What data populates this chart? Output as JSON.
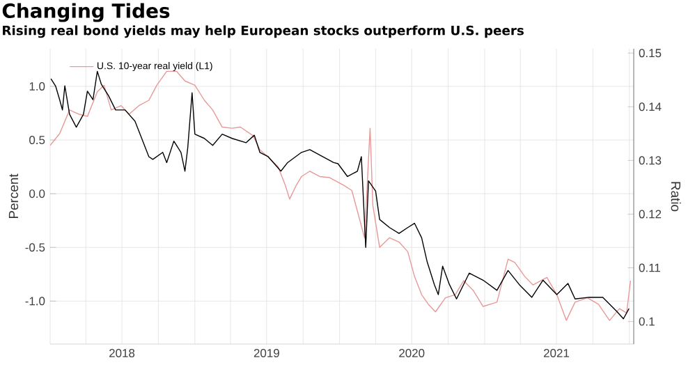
{
  "chart_data": {
    "type": "line",
    "title": "Changing Tides",
    "subtitle": "Rising real bond yields may help European stocks outperform U.S. peers",
    "ylabel": "Percent",
    "y2label": "Ratio",
    "xlim": [
      "2018-01-01",
      "2022-01-12"
    ],
    "ylim": [
      -1.4,
      1.35
    ],
    "y2lim": [
      0.0958,
      0.1508
    ],
    "xticks": [
      {
        "value": "2018-01-01",
        "label": null
      },
      {
        "value": "2018-04-01",
        "label": null
      },
      {
        "value": "2018-07-01",
        "label": "2018"
      },
      {
        "value": "2018-10-01",
        "label": null
      },
      {
        "value": "2019-01-01",
        "label": null
      },
      {
        "value": "2019-04-01",
        "label": null
      },
      {
        "value": "2019-07-01",
        "label": "2019"
      },
      {
        "value": "2019-10-01",
        "label": null
      },
      {
        "value": "2020-01-01",
        "label": null
      },
      {
        "value": "2020-04-01",
        "label": null
      },
      {
        "value": "2020-07-01",
        "label": "2020"
      },
      {
        "value": "2020-10-01",
        "label": null
      },
      {
        "value": "2021-01-01",
        "label": null
      },
      {
        "value": "2021-04-01",
        "label": null
      },
      {
        "value": "2021-07-01",
        "label": "2021"
      },
      {
        "value": "2021-10-01",
        "label": null
      },
      {
        "value": "2022-01-01",
        "label": null
      }
    ],
    "yticks": [
      {
        "value": -1,
        "label": "-1.0"
      },
      {
        "value": -0.5,
        "label": "-0.5"
      },
      {
        "value": 0,
        "label": "0.0"
      },
      {
        "value": 0.5,
        "label": "0.5"
      },
      {
        "value": 1,
        "label": "1.0"
      }
    ],
    "y2ticks": [
      0.1,
      0.11,
      0.12,
      0.13,
      0.14,
      0.15
    ],
    "grid": true,
    "legend": "top left",
    "series": [
      {
        "name": "U.S. 10-year real yield (L1)",
        "color": "#e89898",
        "x": [
          "2018-01-01",
          "2018-01-25",
          "2018-02-19",
          "2018-03-15",
          "2018-04-05",
          "2018-04-30",
          "2018-05-17",
          "2018-06-04",
          "2018-06-29",
          "2018-07-19",
          "2018-08-13",
          "2018-09-07",
          "2018-09-27",
          "2018-10-22",
          "2018-11-16",
          "2018-12-07",
          "2019-01-01",
          "2019-01-25",
          "2019-02-15",
          "2019-03-11",
          "2019-04-05",
          "2019-04-26",
          "2019-05-28",
          "2019-06-14",
          "2019-07-05",
          "2019-07-30",
          "2019-08-17",
          "2019-08-28",
          "2019-09-14",
          "2019-09-27",
          "2019-10-18",
          "2019-11-12",
          "2019-12-07",
          "2020-01-11",
          "2020-02-01",
          "2020-03-04",
          "2020-03-18",
          "2020-03-25",
          "2020-04-11",
          "2020-05-06",
          "2020-05-30",
          "2020-06-21",
          "2020-07-08",
          "2020-07-26",
          "2020-08-12",
          "2020-08-30",
          "2020-09-24",
          "2020-10-19",
          "2020-11-09",
          "2020-12-03",
          "2020-12-28",
          "2021-02-01",
          "2021-03-01",
          "2021-03-18",
          "2021-04-12",
          "2021-05-03",
          "2021-06-07",
          "2021-07-02",
          "2021-07-26",
          "2021-08-17",
          "2021-09-17",
          "2021-10-15",
          "2021-11-12",
          "2021-12-07",
          "2021-12-25",
          "2022-01-04"
        ],
        "values": [
          0.45,
          0.56,
          0.78,
          0.74,
          0.72,
          0.95,
          1.01,
          0.78,
          0.82,
          0.74,
          0.82,
          0.87,
          1.01,
          1.14,
          1.14,
          1.05,
          1.01,
          0.87,
          0.78,
          0.62,
          0.61,
          0.62,
          0.54,
          0.41,
          0.34,
          0.25,
          0.08,
          -0.05,
          0.08,
          0.16,
          0.21,
          0.16,
          0.15,
          0.08,
          0.03,
          -0.41,
          0.61,
          -0.11,
          -0.5,
          -0.41,
          -0.45,
          -0.54,
          -0.77,
          -0.94,
          -1.03,
          -1.1,
          -0.97,
          -0.94,
          -0.81,
          -0.9,
          -1.05,
          -1.01,
          -0.61,
          -0.64,
          -0.77,
          -0.85,
          -0.78,
          -0.94,
          -1.18,
          -1.01,
          -0.97,
          -1.03,
          -1.18,
          -1.07,
          -1.11,
          -0.81
        ]
      },
      {
        "color": "#000000",
        "axis": "y2",
        "x": [
          "2018-01-03",
          "2018-01-15",
          "2018-01-25",
          "2018-02-01",
          "2018-02-07",
          "2018-02-19",
          "2018-03-08",
          "2018-03-26",
          "2018-04-05",
          "2018-04-19",
          "2018-04-30",
          "2018-05-10",
          "2018-05-28",
          "2018-06-15",
          "2018-07-09",
          "2018-08-03",
          "2018-08-20",
          "2018-09-07",
          "2018-09-17",
          "2018-10-12",
          "2018-10-22",
          "2018-11-09",
          "2018-11-27",
          "2018-12-07",
          "2018-12-14",
          "2018-12-25",
          "2019-01-01",
          "2019-01-25",
          "2019-02-15",
          "2019-03-11",
          "2019-04-05",
          "2019-05-10",
          "2019-05-31",
          "2019-06-14",
          "2019-07-05",
          "2019-08-06",
          "2019-08-23",
          "2019-09-27",
          "2019-10-18",
          "2019-11-12",
          "2019-12-17",
          "2019-12-28",
          "2020-01-21",
          "2020-02-15",
          "2020-02-25",
          "2020-03-07",
          "2020-03-14",
          "2020-04-01",
          "2020-04-11",
          "2020-05-06",
          "2020-05-30",
          "2020-06-21",
          "2020-07-08",
          "2020-07-26",
          "2020-08-09",
          "2020-08-27",
          "2020-09-06",
          "2020-09-17",
          "2020-10-04",
          "2020-10-22",
          "2020-11-23",
          "2020-12-28",
          "2021-02-01",
          "2021-03-01",
          "2021-03-29",
          "2021-04-30",
          "2021-05-28",
          "2021-07-02",
          "2021-07-30",
          "2021-08-17",
          "2021-09-21",
          "2021-10-26",
          "2021-11-30",
          "2021-12-17",
          "2021-12-31"
        ],
        "values": [
          0.1452,
          0.1438,
          0.1413,
          0.1394,
          0.1439,
          0.1386,
          0.1362,
          0.1386,
          0.1429,
          0.1413,
          0.1466,
          0.1442,
          0.1421,
          0.1394,
          0.1394,
          0.1373,
          0.1341,
          0.1307,
          0.1302,
          0.1315,
          0.1296,
          0.1336,
          0.1315,
          0.128,
          0.1323,
          0.1426,
          0.1349,
          0.1341,
          0.1328,
          0.1349,
          0.1341,
          0.1333,
          0.1347,
          0.1315,
          0.1307,
          0.128,
          0.1296,
          0.1315,
          0.132,
          0.131,
          0.1296,
          0.1294,
          0.127,
          0.128,
          0.1307,
          0.1138,
          0.1262,
          0.1243,
          0.119,
          0.1175,
          0.1164,
          0.1175,
          0.1183,
          0.1156,
          0.1111,
          0.1069,
          0.105,
          0.1103,
          0.1069,
          0.1042,
          0.109,
          0.1077,
          0.1058,
          0.1095,
          0.1069,
          0.1045,
          0.1077,
          0.105,
          0.1071,
          0.1042,
          0.1045,
          0.1045,
          0.1019,
          0.1005,
          0.1024
        ]
      }
    ]
  }
}
